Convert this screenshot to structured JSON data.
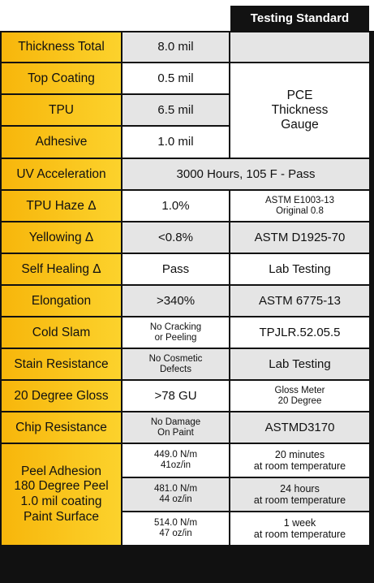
{
  "header": "Testing Standard",
  "rows": [
    {
      "label": "Thickness Total",
      "value": "8.0 mil"
    },
    {
      "label": "Top Coating",
      "value": "0.5 mil"
    },
    {
      "label": "TPU",
      "value": "6.5 mil"
    },
    {
      "label": "Adhesive",
      "value": "1.0 mil"
    },
    {
      "label": "UV Acceleration",
      "value": "3000 Hours, 105 F - Pass"
    },
    {
      "label": "TPU Haze Δ",
      "value": "1.0%",
      "standard": "ASTM E1003-13\nOriginal 0.8"
    },
    {
      "label": "Yellowing Δ",
      "value": "<0.8%",
      "standard": "ASTM D1925-70"
    },
    {
      "label": "Self Healing Δ",
      "value": "Pass",
      "standard": "Lab Testing"
    },
    {
      "label": "Elongation",
      "value": ">340%",
      "standard": "ASTM 6775-13"
    },
    {
      "label": "Cold Slam",
      "value": "No Cracking\nor Peeling",
      "standard": "TPJLR.52.05.5"
    },
    {
      "label": "Stain Resistance",
      "value": "No Cosmetic\nDefects",
      "standard": "Lab Testing"
    },
    {
      "label": "20 Degree Gloss",
      "value": ">78 GU",
      "standard": "Gloss Meter\n20 Degree"
    },
    {
      "label": "Chip Resistance",
      "value": "No Damage\nOn Paint",
      "standard": "ASTMD3170"
    }
  ],
  "thickness_standard": "PCE\nThickness\nGauge",
  "peel": {
    "label": "Peel Adhesion\n180 Degree Peel\n1.0 mil coating\nPaint Surface",
    "entries": [
      {
        "value": "449.0 N/m\n41oz/in",
        "standard": "20 minutes\nat room temperature"
      },
      {
        "value": "481.0 N/m\n44 oz/in",
        "standard": "24 hours\nat room temperature"
      },
      {
        "value": "514.0 N/m\n47 oz/in",
        "standard": "1 week\nat room temperature"
      }
    ]
  }
}
